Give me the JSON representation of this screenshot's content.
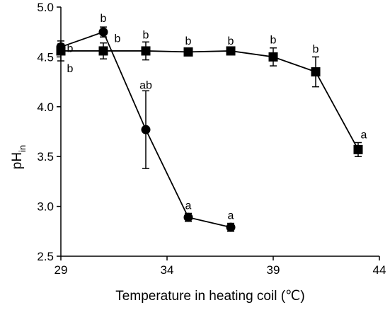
{
  "chart_data": {
    "type": "scatter",
    "xlabel": "Temperature in heating coil (℃)",
    "ylabel": {
      "main": "pH",
      "subscript": "in"
    },
    "xlim": [
      29,
      44
    ],
    "ylim": [
      2.5,
      5.0
    ],
    "x_ticks": [
      29,
      34,
      39,
      44
    ],
    "y_ticks": [
      "2.5",
      "3.0",
      "3.5",
      "4.0",
      "4.5",
      "5.0"
    ],
    "grid": false,
    "legend": "none",
    "series": [
      {
        "marker": "circle",
        "x": [
          29,
          31,
          33,
          35,
          37
        ],
        "y": [
          4.6,
          4.75,
          3.77,
          2.89,
          2.79
        ],
        "error": [
          0.03,
          0.05,
          0.39,
          0.04,
          0.04
        ],
        "labels": [
          "b",
          "b",
          "ab",
          "a",
          "a"
        ]
      },
      {
        "marker": "square",
        "x": [
          29,
          31,
          33,
          35,
          37,
          39,
          41,
          43
        ],
        "y": [
          4.56,
          4.56,
          4.56,
          4.55,
          4.56,
          4.5,
          4.35,
          3.57
        ],
        "error": [
          0.1,
          0.08,
          0.09,
          0.03,
          0.02,
          0.09,
          0.15,
          0.07
        ],
        "labels": [
          "b",
          "b",
          "b",
          "b",
          "b",
          "b",
          "b",
          "a"
        ]
      }
    ]
  }
}
